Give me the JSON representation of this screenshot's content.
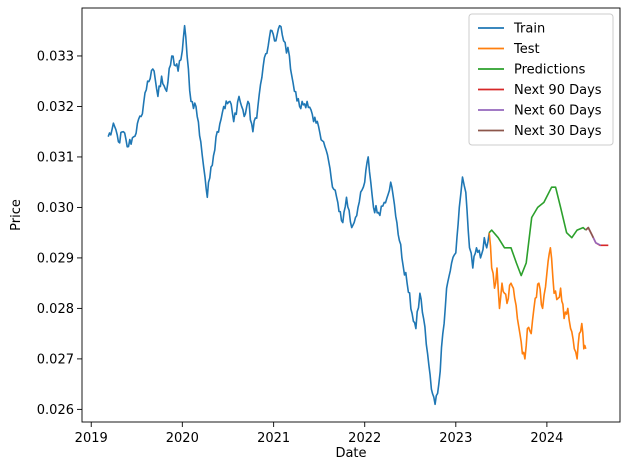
{
  "chart_data": {
    "type": "line",
    "title": "",
    "xlabel": "Date",
    "ylabel": "Price",
    "x_type": "date",
    "xlim": [
      "2018-11-25",
      "2024-10-20"
    ],
    "ylim": [
      0.02575,
      0.03395
    ],
    "x_ticks": [
      "2019-01-01",
      "2020-01-01",
      "2021-01-01",
      "2022-01-01",
      "2023-01-01",
      "2024-01-01"
    ],
    "x_tick_labels": [
      "2019",
      "2020",
      "2021",
      "2022",
      "2023",
      "2024"
    ],
    "y_ticks": [
      0.026,
      0.027,
      0.028,
      0.029,
      0.03,
      0.031,
      0.032,
      0.033
    ],
    "y_tick_labels": [
      "0.026",
      "0.027",
      "0.028",
      "0.029",
      "0.030",
      "0.031",
      "0.032",
      "0.033"
    ],
    "grid": false,
    "legend_position": "top-right",
    "series": [
      {
        "name": "Train",
        "color": "#1f77b4",
        "points": [
          [
            "2019-03-10",
            0.0314
          ],
          [
            "2019-04-05",
            0.0316
          ],
          [
            "2019-04-20",
            0.0313
          ],
          [
            "2019-05-10",
            0.0315
          ],
          [
            "2019-05-25",
            0.0312
          ],
          [
            "2019-06-20",
            0.0314
          ],
          [
            "2019-07-20",
            0.0318
          ],
          [
            "2019-08-15",
            0.0325
          ],
          [
            "2019-09-10",
            0.0327
          ],
          [
            "2019-09-25",
            0.0322
          ],
          [
            "2019-10-10",
            0.0326
          ],
          [
            "2019-10-30",
            0.0323
          ],
          [
            "2019-11-20",
            0.033
          ],
          [
            "2019-12-15",
            0.0327
          ],
          [
            "2020-01-01",
            0.0331
          ],
          [
            "2020-01-10",
            0.0336
          ],
          [
            "2020-01-20",
            0.033
          ],
          [
            "2020-02-05",
            0.0321
          ],
          [
            "2020-02-25",
            0.032
          ],
          [
            "2020-03-15",
            0.0313
          ],
          [
            "2020-04-01",
            0.0306
          ],
          [
            "2020-04-10",
            0.0302
          ],
          [
            "2020-04-25",
            0.0308
          ],
          [
            "2020-05-20",
            0.0315
          ],
          [
            "2020-06-15",
            0.032
          ],
          [
            "2020-07-10",
            0.0321
          ],
          [
            "2020-07-25",
            0.0317
          ],
          [
            "2020-08-15",
            0.0322
          ],
          [
            "2020-09-05",
            0.0318
          ],
          [
            "2020-09-20",
            0.0321
          ],
          [
            "2020-10-10",
            0.0315
          ],
          [
            "2020-10-30",
            0.032
          ],
          [
            "2020-11-20",
            0.0328
          ],
          [
            "2020-12-10",
            0.0332
          ],
          [
            "2020-12-25",
            0.0335
          ],
          [
            "2021-01-10",
            0.0333
          ],
          [
            "2021-01-25",
            0.0336
          ],
          [
            "2021-02-10",
            0.0333
          ],
          [
            "2021-03-05",
            0.033
          ],
          [
            "2021-03-25",
            0.0323
          ],
          [
            "2021-04-15",
            0.032
          ],
          [
            "2021-05-15",
            0.0321
          ],
          [
            "2021-06-10",
            0.0317
          ],
          [
            "2021-06-30",
            0.0316
          ],
          [
            "2021-07-20",
            0.0313
          ],
          [
            "2021-08-10",
            0.0309
          ],
          [
            "2021-08-25",
            0.0304
          ],
          [
            "2021-09-15",
            0.0301
          ],
          [
            "2021-10-05",
            0.0297
          ],
          [
            "2021-10-20",
            0.0302
          ],
          [
            "2021-11-10",
            0.0296
          ],
          [
            "2021-12-05",
            0.03
          ],
          [
            "2022-01-01",
            0.0305
          ],
          [
            "2022-01-15",
            0.031
          ],
          [
            "2022-02-05",
            0.03
          ],
          [
            "2022-02-25",
            0.0299
          ],
          [
            "2022-03-20",
            0.0301
          ],
          [
            "2022-04-15",
            0.0305
          ],
          [
            "2022-05-10",
            0.0297
          ],
          [
            "2022-05-30",
            0.029
          ],
          [
            "2022-06-20",
            0.0285
          ],
          [
            "2022-07-10",
            0.0279
          ],
          [
            "2022-07-25",
            0.0276
          ],
          [
            "2022-08-10",
            0.0283
          ],
          [
            "2022-08-25",
            0.0278
          ],
          [
            "2022-09-10",
            0.0271
          ],
          [
            "2022-09-25",
            0.0264
          ],
          [
            "2022-10-10",
            0.0261
          ],
          [
            "2022-10-25",
            0.0265
          ],
          [
            "2022-11-10",
            0.0275
          ],
          [
            "2022-11-25",
            0.0284
          ],
          [
            "2022-12-15",
            0.0289
          ],
          [
            "2023-01-01",
            0.0291
          ],
          [
            "2023-01-15",
            0.03
          ],
          [
            "2023-01-28",
            0.0306
          ],
          [
            "2023-02-10",
            0.0303
          ],
          [
            "2023-02-25",
            0.0292
          ],
          [
            "2023-03-10",
            0.0288
          ],
          [
            "2023-03-25",
            0.0292
          ],
          [
            "2023-04-10",
            0.029
          ],
          [
            "2023-04-25",
            0.0294
          ],
          [
            "2023-05-05",
            0.0292
          ],
          [
            "2023-05-15",
            0.0295
          ]
        ]
      },
      {
        "name": "Test",
        "color": "#ff7f0e",
        "points": [
          [
            "2023-05-15",
            0.0295
          ],
          [
            "2023-05-25",
            0.0288
          ],
          [
            "2023-06-05",
            0.0284
          ],
          [
            "2023-06-15",
            0.0288
          ],
          [
            "2023-06-25",
            0.028
          ],
          [
            "2023-07-05",
            0.0285
          ],
          [
            "2023-07-15",
            0.0283
          ],
          [
            "2023-07-25",
            0.0281
          ],
          [
            "2023-08-10",
            0.0285
          ],
          [
            "2023-08-25",
            0.0282
          ],
          [
            "2023-09-05",
            0.0278
          ],
          [
            "2023-09-15",
            0.0275
          ],
          [
            "2023-09-25",
            0.0271
          ],
          [
            "2023-10-05",
            0.027
          ],
          [
            "2023-10-15",
            0.0276
          ],
          [
            "2023-10-30",
            0.0275
          ],
          [
            "2023-11-15",
            0.0282
          ],
          [
            "2023-11-30",
            0.0285
          ],
          [
            "2023-12-15",
            0.028
          ],
          [
            "2024-01-01",
            0.0287
          ],
          [
            "2024-01-15",
            0.0292
          ],
          [
            "2024-01-30",
            0.0283
          ],
          [
            "2024-02-15",
            0.0282
          ],
          [
            "2024-02-25",
            0.0284
          ],
          [
            "2024-03-10",
            0.0278
          ],
          [
            "2024-03-25",
            0.028
          ],
          [
            "2024-04-05",
            0.0276
          ],
          [
            "2024-04-20",
            0.0272
          ],
          [
            "2024-05-01",
            0.027
          ],
          [
            "2024-05-10",
            0.0275
          ],
          [
            "2024-05-20",
            0.0277
          ],
          [
            "2024-05-28",
            0.0272
          ],
          [
            "2024-06-05",
            0.0272
          ]
        ]
      },
      {
        "name": "Predictions",
        "color": "#2ca02c",
        "points": [
          [
            "2023-05-15",
            0.0295
          ],
          [
            "2023-05-25",
            0.02955
          ],
          [
            "2023-06-20",
            0.0294
          ],
          [
            "2023-07-15",
            0.0292
          ],
          [
            "2023-08-10",
            0.0292
          ],
          [
            "2023-09-01",
            0.0289
          ],
          [
            "2023-09-20",
            0.02865
          ],
          [
            "2023-10-10",
            0.0289
          ],
          [
            "2023-11-01",
            0.0298
          ],
          [
            "2023-11-25",
            0.03
          ],
          [
            "2023-12-20",
            0.0301
          ],
          [
            "2024-01-20",
            0.0304
          ],
          [
            "2024-02-05",
            0.0304
          ],
          [
            "2024-02-25",
            0.03
          ],
          [
            "2024-03-20",
            0.0295
          ],
          [
            "2024-04-10",
            0.0294
          ],
          [
            "2024-05-01",
            0.02955
          ],
          [
            "2024-05-25",
            0.0296
          ],
          [
            "2024-06-05",
            0.02955
          ]
        ]
      },
      {
        "name": "Next 90 Days",
        "color": "#d62728",
        "points": [
          [
            "2024-06-05",
            0.02955
          ],
          [
            "2024-06-15",
            0.0296
          ],
          [
            "2024-06-30",
            0.02945
          ],
          [
            "2024-07-15",
            0.0293
          ],
          [
            "2024-08-01",
            0.02925
          ],
          [
            "2024-08-15",
            0.02925
          ],
          [
            "2024-09-03",
            0.02925
          ]
        ]
      },
      {
        "name": "Next 60 Days",
        "color": "#9467bd",
        "points": [
          [
            "2024-06-05",
            0.02955
          ],
          [
            "2024-06-15",
            0.0296
          ],
          [
            "2024-06-30",
            0.02945
          ],
          [
            "2024-07-15",
            0.0293
          ],
          [
            "2024-08-04",
            0.02925
          ]
        ]
      },
      {
        "name": "Next 30 Days",
        "color": "#8c564b",
        "points": [
          [
            "2024-06-05",
            0.02955
          ],
          [
            "2024-06-15",
            0.0296
          ],
          [
            "2024-06-30",
            0.02945
          ],
          [
            "2024-07-05",
            0.0294
          ]
        ]
      }
    ]
  }
}
